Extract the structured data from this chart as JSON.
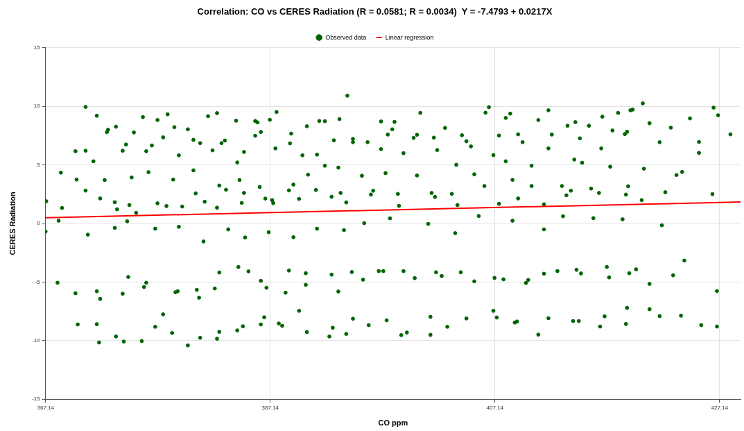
{
  "chart_data": {
    "type": "scatter",
    "title": "Correlation: CO vs CERES Radiation (R = 0.0581; R = 0.0034)  Y = -7.4793 + 0.0217X",
    "xlabel": "CO ppm",
    "ylabel": "CERES Radiation",
    "xlim": [
      367.14,
      429
    ],
    "xticks": [
      367.14,
      387.14,
      407.14,
      427.14
    ],
    "ylim": [
      -15,
      15
    ],
    "yticks": [
      -15,
      -10,
      -5,
      0,
      5,
      10,
      15
    ],
    "grid": true,
    "legend": "top",
    "series": [
      {
        "name": "Observed data",
        "color": "#006400",
        "marker": "circle",
        "x": [
          367.2,
          367.14,
          368.3,
          368.2,
          368.5,
          368.6,
          369.8,
          369.8,
          369.9,
          370.0,
          370.7,
          370.7,
          370.7,
          370.9,
          371.4,
          371.7,
          371.7,
          371.7,
          371.9,
          372.0,
          372.0,
          372.4,
          372.6,
          372.7,
          373.3,
          373.3,
          373.4,
          373.4,
          373.5,
          374.0,
          374.0,
          374.1,
          374.3,
          374.4,
          374.5,
          374.6,
          374.8,
          375.0,
          375.2,
          375.7,
          375.8,
          375.9,
          376.1,
          376.1,
          376.3,
          376.6,
          376.9,
          376.9,
          377.1,
          377.1,
          377.6,
          377.6,
          377.9,
          378.0,
          378.4,
          378.5,
          378.6,
          378.7,
          378.9,
          379.0,
          379.0,
          379.3,
          379.8,
          379.8,
          380.3,
          380.3,
          380.5,
          380.6,
          380.8,
          380.9,
          380.9,
          381.2,
          381.3,
          381.6,
          382.0,
          382.2,
          382.4,
          382.4,
          382.4,
          382.6,
          382.6,
          382.6,
          382.8,
          383.1,
          383.2,
          383.4,
          384.1,
          384.2,
          384.2,
          384.3,
          384.4,
          384.6,
          384.7,
          384.8,
          384.8,
          384.9,
          385.2,
          385.8,
          385.8,
          386.0,
          386.2,
          386.3,
          386.3,
          386.3,
          386.6,
          386.7,
          386.8,
          387.0,
          387.1,
          387.3,
          387.4,
          387.6,
          387.7,
          387.9,
          388.2,
          388.5,
          388.8,
          388.8,
          388.9,
          389.0,
          389.2,
          389.2,
          389.7,
          389.7,
          390.0,
          390.3,
          390.3,
          390.4,
          390.4,
          390.5,
          391.2,
          391.3,
          391.3,
          391.5,
          392.0,
          392.0,
          392.4,
          392.6,
          392.6,
          392.7,
          392.8,
          393.2,
          393.2,
          393.3,
          393.4,
          393.7,
          393.9,
          393.9,
          394.0,
          394.4,
          394.5,
          394.5,
          394.5,
          395.4,
          395.3,
          395.5,
          395.8,
          395.9,
          396.1,
          396.3,
          396.8,
          397.2,
          397.0,
          397.0,
          397.4,
          397.5,
          397.6,
          397.8,
          398.0,
          398.2,
          398.5,
          398.6,
          398.8,
          399.0,
          399.0,
          399.3,
          399.9,
          400.2,
          400.0,
          400.2,
          400.5,
          401.2,
          401.4,
          401.4,
          401.5,
          401.8,
          401.7,
          401.9,
          402.0,
          402.4,
          402.7,
          402.9,
          403.3,
          403.6,
          403.7,
          403.8,
          404.1,
          404.2,
          404.6,
          404.6,
          405.0,
          405.3,
          405.3,
          405.7,
          406.2,
          406.3,
          406.6,
          407.0,
          407.0,
          407.1,
          407.3,
          407.5,
          407.5,
          407.9,
          408.1,
          408.1,
          408.5,
          408.7,
          408.7,
          408.9,
          409.1,
          409.2,
          409.2,
          409.6,
          409.9,
          410.1,
          410.4,
          410.4,
          411.0,
          411.0,
          411.5,
          411.5,
          411.5,
          411.9,
          411.9,
          411.9,
          412.2,
          412.7,
          413.1,
          413.2,
          413.5,
          413.6,
          413.9,
          414.1,
          414.2,
          414.3,
          414.4,
          414.6,
          414.7,
          414.8,
          414.9,
          415.5,
          415.7,
          415.9,
          416.4,
          416.5,
          416.6,
          416.7,
          416.9,
          417.1,
          417.3,
          417.4,
          417.6,
          418.1,
          418.5,
          418.7,
          418.8,
          418.8,
          418.9,
          418.9,
          419.0,
          419.1,
          419.2,
          419.4,
          419.7,
          420.2,
          420.3,
          420.4,
          420.9,
          420.9,
          420.9,
          421.8,
          421.8,
          422.0,
          422.3,
          422.8,
          423.0,
          423.3,
          423.7,
          423.8,
          424.0,
          424.5,
          425.3,
          425.3,
          425.5,
          426.5,
          426.6,
          426.9,
          426.9,
          427.0,
          428.1
        ],
        "values": [
          1.89,
          -0.69,
          0.23,
          -5.06,
          4.33,
          1.32,
          -5.96,
          6.16,
          3.74,
          -8.62,
          9.94,
          6.2,
          2.8,
          -0.96,
          5.3,
          9.19,
          -8.6,
          -5.79,
          -10.16,
          2.13,
          -6.44,
          3.7,
          7.79,
          7.99,
          1.81,
          -0.38,
          8.25,
          -9.65,
          1.2,
          6.2,
          -6.0,
          -10.08,
          6.73,
          0.18,
          -4.57,
          1.57,
          3.92,
          7.76,
          0.9,
          -10.04,
          9.07,
          -5.43,
          6.16,
          -5.06,
          4.37,
          6.65,
          -0.45,
          -8.82,
          8.82,
          1.71,
          -7.76,
          7.34,
          1.48,
          9.31,
          -9.35,
          3.74,
          8.21,
          -5.87,
          -5.79,
          -0.29,
          5.81,
          1.44,
          -10.41,
          8.03,
          7.13,
          4.53,
          2.56,
          -5.67,
          -6.34,
          -9.76,
          6.85,
          -1.54,
          1.85,
          9.15,
          6.24,
          -5.55,
          9.41,
          1.34,
          -9.84,
          -4.19,
          3.23,
          -9.25,
          6.85,
          7.07,
          2.87,
          -0.51,
          8.76,
          5.2,
          -9.13,
          -3.72,
          3.7,
          1.75,
          -8.78,
          6.1,
          2.6,
          -1.2,
          -4.09,
          8.74,
          7.48,
          8.62,
          3.11,
          7.8,
          -4.9,
          -8.62,
          -8.01,
          2.12,
          -5.49,
          -0.75,
          8.84,
          1.99,
          1.73,
          6.4,
          9.51,
          -8.54,
          -8.74,
          -5.91,
          -4.02,
          2.82,
          6.83,
          7.66,
          3.31,
          -1.18,
          -7.46,
          2.09,
          5.81,
          -5.24,
          -4.25,
          8.29,
          -9.27,
          4.16,
          2.85,
          -0.45,
          5.87,
          8.74,
          8.72,
          4.92,
          -9.65,
          -4.37,
          2.27,
          -8.9,
          7.09,
          4.76,
          -5.81,
          8.9,
          2.6,
          -0.57,
          1.79,
          -9.43,
          10.9,
          -4.15,
          -8.13,
          7.21,
          6.93,
          -4.8,
          4.07,
          0.02,
          6.93,
          -8.68,
          2.46,
          2.79,
          -4.07,
          -4.07,
          8.7,
          6.34,
          4.29,
          -8.27,
          7.58,
          0.43,
          8.03,
          8.66,
          2.52,
          1.5,
          -9.53,
          5.99,
          -4.07,
          -9.31,
          7.3,
          7.56,
          -4.67,
          4.09,
          9.43,
          -0.04,
          -9.51,
          -7.97,
          2.6,
          2.26,
          7.32,
          -4.17,
          6.26,
          -4.49,
          8.15,
          -8.82,
          2.52,
          -0.83,
          5.0,
          1.57,
          -4.17,
          7.52,
          -8.11,
          7.01,
          6.57,
          4.19,
          -4.94,
          0.63,
          3.19,
          9.45,
          9.92,
          5.83,
          -7.46,
          -4.65,
          -8.03,
          7.5,
          1.67,
          -4.77,
          9.0,
          5.3,
          9.37,
          3.72,
          0.23,
          -8.46,
          -8.37,
          7.6,
          2.13,
          6.93,
          -5.08,
          -4.82,
          4.92,
          3.19,
          8.82,
          -9.49,
          1.63,
          -0.51,
          -4.29,
          9.65,
          6.4,
          -8.09,
          7.58,
          -4.07,
          3.19,
          0.61,
          2.4,
          8.33,
          2.79,
          -8.33,
          5.45,
          8.64,
          -3.96,
          -8.33,
          7.26,
          -4.27,
          5.18,
          8.33,
          2.97,
          0.45,
          2.6,
          -8.8,
          6.4,
          9.1,
          -7.93,
          -3.72,
          -4.61,
          4.84,
          7.93,
          9.43,
          0.35,
          7.62,
          2.46,
          -8.58,
          -7.21,
          7.82,
          3.17,
          -4.25,
          9.65,
          9.71,
          -3.92,
          1.99,
          10.24,
          4.67,
          -7.32,
          -5.16,
          8.55,
          6.93,
          -7.91,
          -0.16,
          2.66,
          8.17,
          -4.43,
          4.13,
          -7.87,
          4.39,
          -3.17,
          8.96,
          6.95,
          6.02,
          -8.68,
          2.5,
          9.88,
          -5.77,
          -8.8,
          9.23,
          7.6
        ]
      },
      {
        "name": "Linear regression",
        "type": "line",
        "color": "#ff0000",
        "marker": "none",
        "x": [
          367.14,
          429
        ],
        "values": [
          0.49,
          1.83
        ]
      }
    ]
  }
}
